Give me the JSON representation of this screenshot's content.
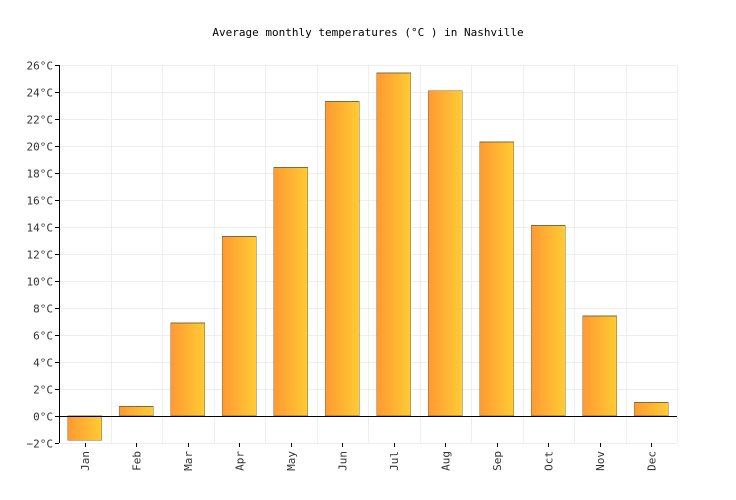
{
  "colors": {
    "bar_gradient_start": "#ff9933",
    "bar_gradient_end": "#ffcc33",
    "bar_stroke": "#7f6a3a",
    "grid": "#eeeeee",
    "axis": "#000000"
  },
  "chart_data": {
    "type": "bar",
    "title": "Average monthly temperatures (°C ) in Nashville",
    "xlabel": "",
    "ylabel": "",
    "categories": [
      "Jan",
      "Feb",
      "Mar",
      "Apr",
      "May",
      "Jun",
      "Jul",
      "Aug",
      "Sep",
      "Oct",
      "Nov",
      "Dec"
    ],
    "values": [
      -1.8,
      0.7,
      6.9,
      13.3,
      18.4,
      23.3,
      25.4,
      24.1,
      20.3,
      14.1,
      7.4,
      1.0
    ],
    "ylim": [
      -2,
      26
    ],
    "yticks": [
      -2,
      0,
      2,
      4,
      6,
      8,
      10,
      12,
      14,
      16,
      18,
      20,
      22,
      24,
      26
    ],
    "ytick_labels": [
      "−2°C",
      "0°C",
      "2°C",
      "4°C",
      "6°C",
      "8°C",
      "10°C",
      "12°C",
      "14°C",
      "16°C",
      "18°C",
      "20°C",
      "22°C",
      "24°C",
      "26°C"
    ],
    "grid": true,
    "legend": "none"
  }
}
